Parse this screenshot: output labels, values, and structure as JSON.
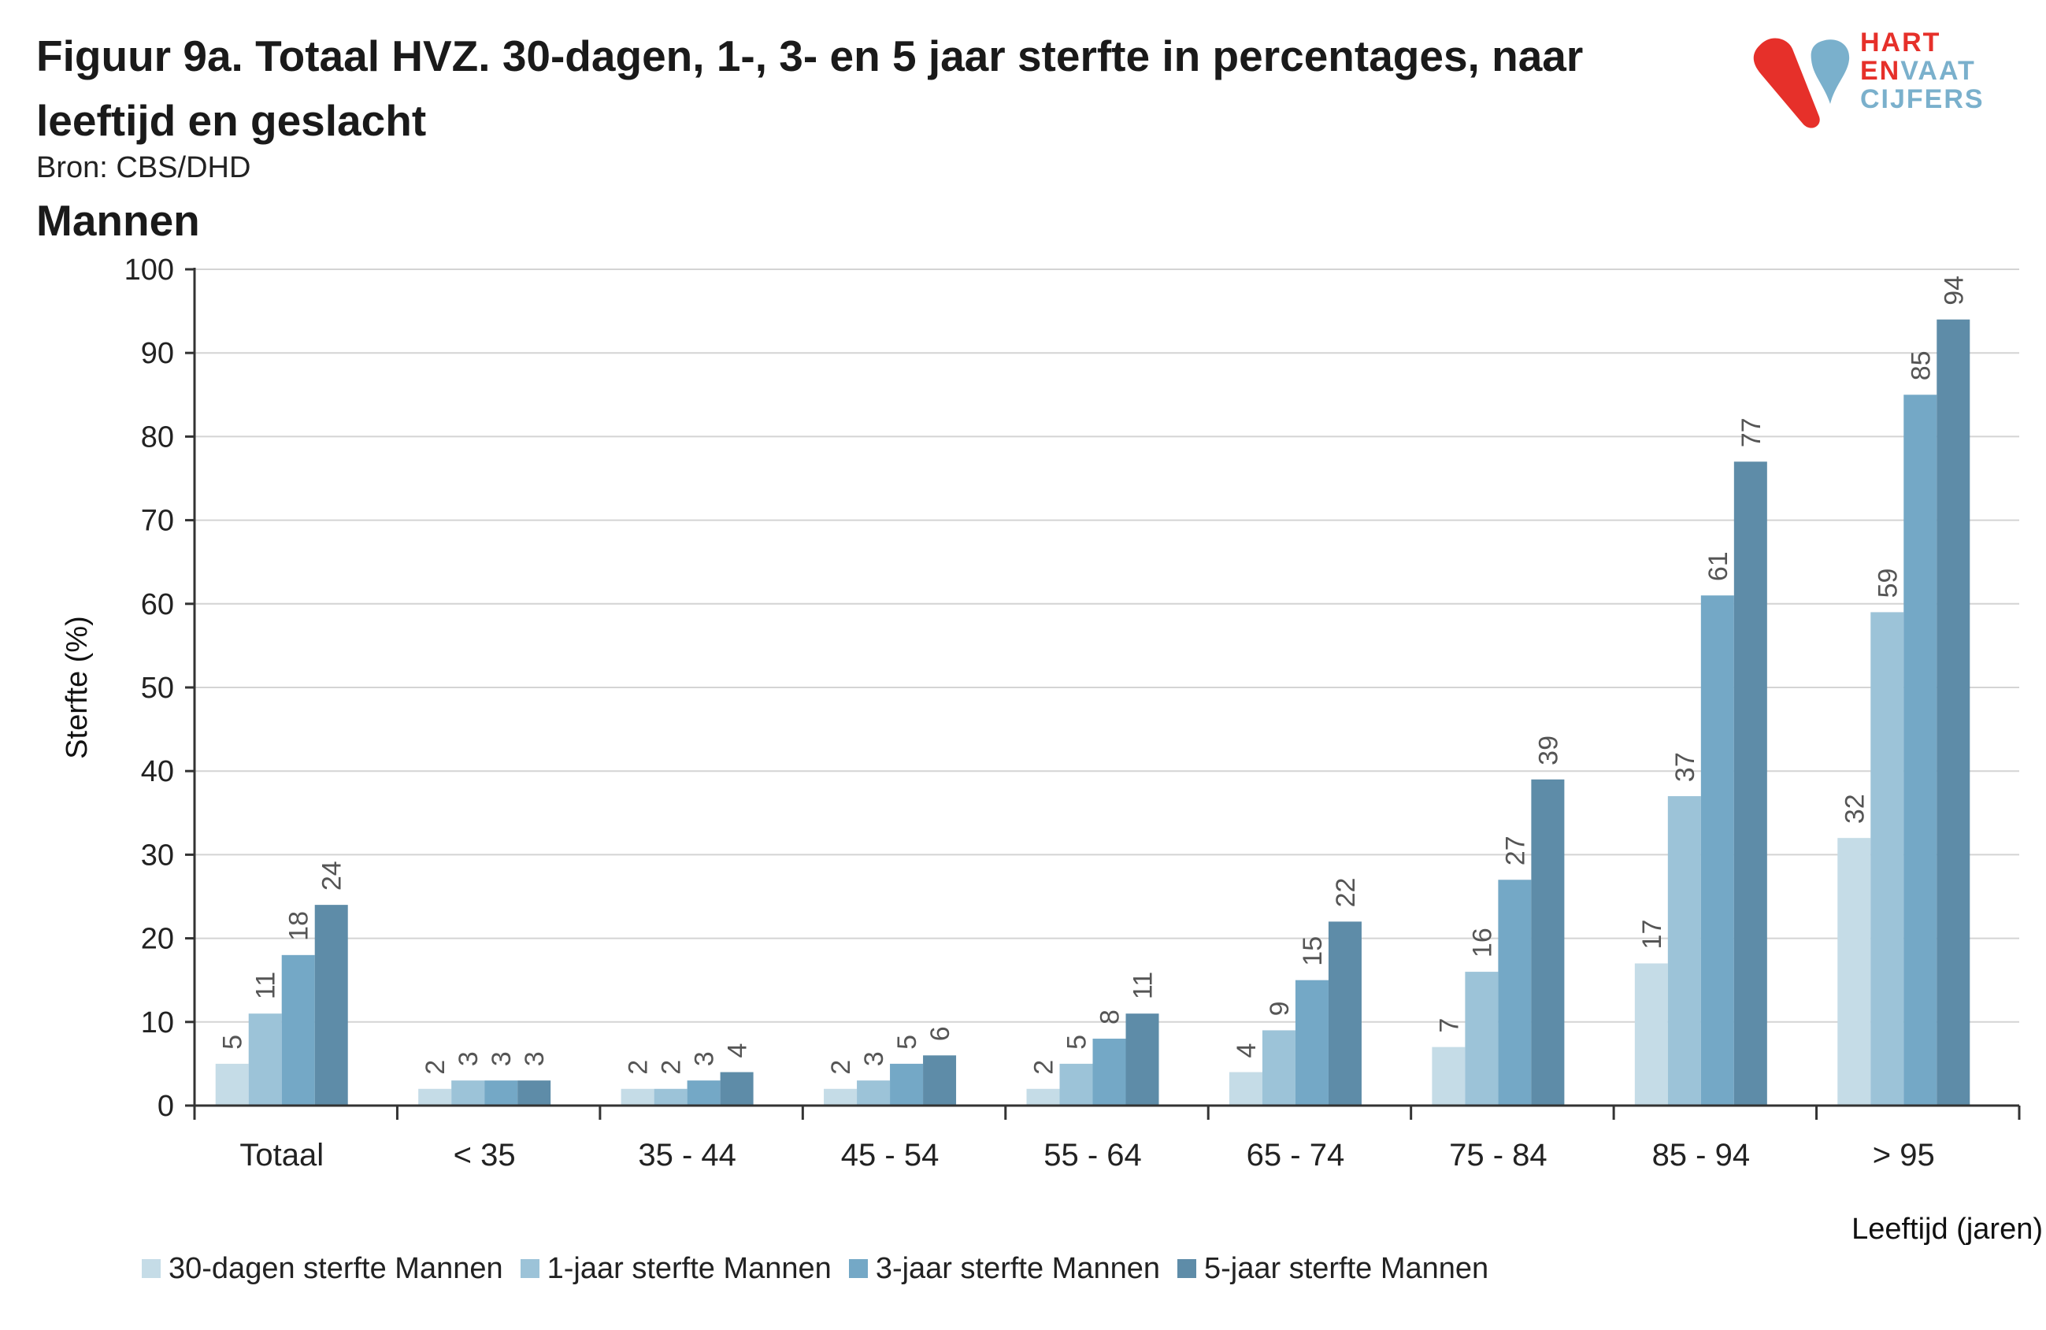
{
  "header": {
    "title": "Figuur 9a. Totaal HVZ. 30-dagen, 1-, 3- en 5 jaar sterfte in percentages, naar leeftijd en geslacht",
    "source": "Bron: CBS/DHD",
    "subtitle": "Mannen"
  },
  "logo": {
    "line1": "HART",
    "line2a": "EN",
    "line2b": "VAAT",
    "line3": "CIJFERS",
    "colors": {
      "red": "#e6302a",
      "blue": "#7ab0cc"
    }
  },
  "chart_data": {
    "type": "bar",
    "categories": [
      "Totaal",
      "< 35",
      "35 - 44",
      "45 - 54",
      "55 - 64",
      "65 - 74",
      "75 - 84",
      "85 - 94",
      "> 95"
    ],
    "series": [
      {
        "name": "30-dagen sterfte Mannen",
        "color": "#c5dce7",
        "values": [
          5,
          2,
          2,
          2,
          2,
          4,
          7,
          17,
          32
        ]
      },
      {
        "name": "1-jaar sterfte Mannen",
        "color": "#9cc3d8",
        "values": [
          11,
          3,
          2,
          3,
          5,
          9,
          16,
          37,
          59
        ]
      },
      {
        "name": "3-jaar sterfte Mannen",
        "color": "#74a8c6",
        "values": [
          18,
          3,
          3,
          5,
          8,
          15,
          27,
          61,
          85
        ]
      },
      {
        "name": "5-jaar sterfte Mannen",
        "color": "#5e8ca8",
        "values": [
          24,
          3,
          4,
          6,
          11,
          22,
          39,
          77,
          94
        ]
      }
    ],
    "ylabel": "Sterfte (%)",
    "xlabel": "Leeftijd (jaren)",
    "ylim": [
      0,
      100
    ],
    "yticks": [
      0,
      10,
      20,
      30,
      40,
      50,
      60,
      70,
      80,
      90,
      100
    ],
    "grid": true,
    "legend": "bottom",
    "data_labels": true
  }
}
